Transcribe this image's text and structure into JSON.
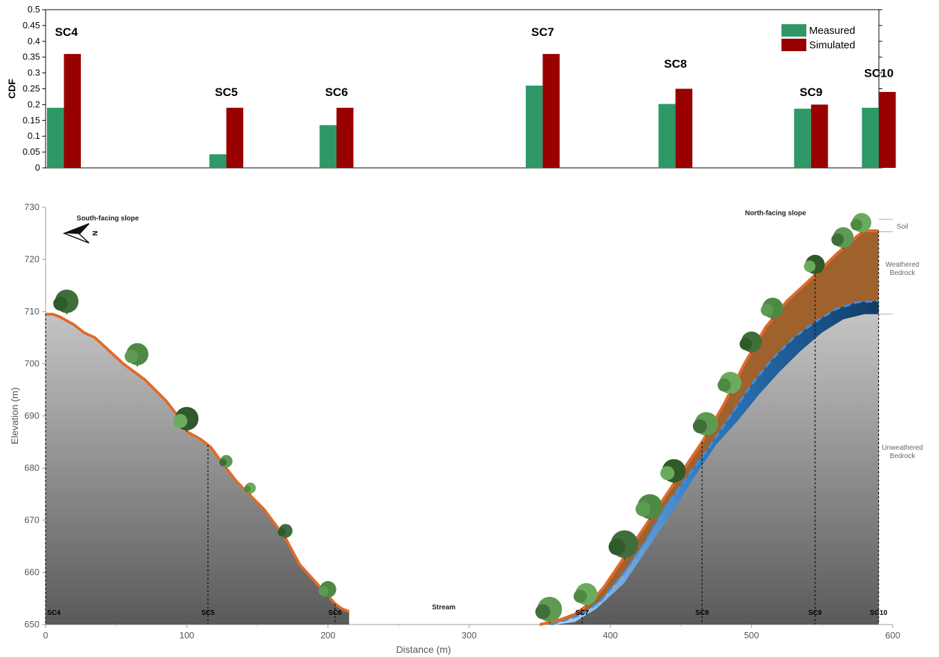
{
  "chart_data": [
    {
      "type": "bar",
      "ylabel": "CDF",
      "ylim": [
        0,
        0.5
      ],
      "yticks": [
        "0",
        "0.05",
        "0.1",
        "0.15",
        "0.2",
        "0.25",
        "0.3",
        "0.35",
        "0.4",
        "0.45",
        "0.5"
      ],
      "legend_position": "top-right",
      "categories": [
        "SC4",
        "SC5",
        "SC6",
        "SC7",
        "SC8",
        "SC9",
        "SC10"
      ],
      "series": [
        {
          "name": "Measured",
          "color": "#2e9966",
          "values": [
            0.19,
            0.043,
            0.135,
            0.26,
            0.202,
            0.187,
            0.19
          ]
        },
        {
          "name": "Simulated",
          "color": "#990000",
          "values": [
            0.36,
            0.19,
            0.19,
            0.36,
            0.25,
            0.2,
            0.24
          ]
        }
      ],
      "label_heights": [
        0.43,
        0.24,
        0.24,
        0.43,
        0.33,
        0.24,
        0.3
      ]
    },
    {
      "type": "area",
      "xlabel": "Distance (m)",
      "ylabel": "Elevation (m)",
      "xlim": [
        0,
        600
      ],
      "ylim": [
        650,
        730
      ],
      "xticks": [
        "0",
        "100",
        "200",
        "300",
        "400",
        "500",
        "600"
      ],
      "yticks": [
        "650",
        "660",
        "670",
        "680",
        "690",
        "700",
        "710",
        "720",
        "730"
      ],
      "annotations": {
        "south_slope": "South-facing slope",
        "north_slope": "North-facing slope",
        "stream": "Stream",
        "compass": "N"
      },
      "layer_labels": {
        "soil": "Soil",
        "weathered": "Weathered\nBedrock",
        "unweathered": "Unweathered\nBedrock"
      },
      "sites": [
        {
          "label": "SC4",
          "x": 0
        },
        {
          "label": "SC5",
          "x": 115
        },
        {
          "label": "SC6",
          "x": 205
        },
        {
          "label": "SC7",
          "x": 380
        },
        {
          "label": "SC8",
          "x": 465
        },
        {
          "label": "SC9",
          "x": 545
        },
        {
          "label": "SC10",
          "x": 590
        }
      ],
      "south_surface": [
        [
          0,
          709.5
        ],
        [
          5,
          709.5
        ],
        [
          10,
          709
        ],
        [
          20,
          707.5
        ],
        [
          27,
          706
        ],
        [
          35,
          705
        ],
        [
          45,
          702.5
        ],
        [
          55,
          700
        ],
        [
          70,
          697
        ],
        [
          85,
          693
        ],
        [
          95,
          689.5
        ],
        [
          100,
          687
        ],
        [
          110,
          685.5
        ],
        [
          117,
          684
        ],
        [
          125,
          681
        ],
        [
          135,
          677.5
        ],
        [
          155,
          672
        ],
        [
          170,
          666.5
        ],
        [
          180,
          661.5
        ],
        [
          195,
          657
        ],
        [
          205,
          654
        ],
        [
          210,
          653
        ],
        [
          215,
          652.5
        ]
      ],
      "north_surface": [
        [
          350,
          650
        ],
        [
          355,
          650.3
        ],
        [
          365,
          651
        ],
        [
          375,
          652
        ],
        [
          385,
          654
        ],
        [
          395,
          657
        ],
        [
          405,
          661
        ],
        [
          415,
          665
        ],
        [
          430,
          671
        ],
        [
          450,
          679
        ],
        [
          465,
          685
        ],
        [
          480,
          692
        ],
        [
          495,
          700
        ],
        [
          510,
          707
        ],
        [
          525,
          712
        ],
        [
          545,
          717
        ],
        [
          560,
          721
        ],
        [
          575,
          724.5
        ],
        [
          580,
          725.5
        ],
        [
          590,
          725.5
        ]
      ],
      "weathered_top": [
        [
          358,
          650
        ],
        [
          370,
          651
        ],
        [
          380,
          652
        ],
        [
          393,
          654.5
        ],
        [
          410,
          660
        ],
        [
          425,
          666
        ],
        [
          440,
          673
        ],
        [
          455,
          678.5
        ],
        [
          470,
          684
        ],
        [
          485,
          690
        ],
        [
          500,
          696
        ],
        [
          515,
          701
        ],
        [
          530,
          705
        ],
        [
          545,
          708
        ],
        [
          560,
          710.5
        ],
        [
          575,
          711.8
        ],
        [
          590,
          712
        ]
      ],
      "unweathered_top": [
        [
          362,
          650
        ],
        [
          375,
          650.5
        ],
        [
          390,
          653
        ],
        [
          410,
          658
        ],
        [
          425,
          664
        ],
        [
          445,
          672
        ],
        [
          460,
          678.5
        ],
        [
          475,
          684.5
        ],
        [
          490,
          689
        ],
        [
          505,
          694
        ],
        [
          520,
          698.5
        ],
        [
          535,
          702.5
        ],
        [
          550,
          706
        ],
        [
          565,
          708.5
        ],
        [
          580,
          709.5
        ],
        [
          590,
          709.5
        ]
      ]
    }
  ]
}
